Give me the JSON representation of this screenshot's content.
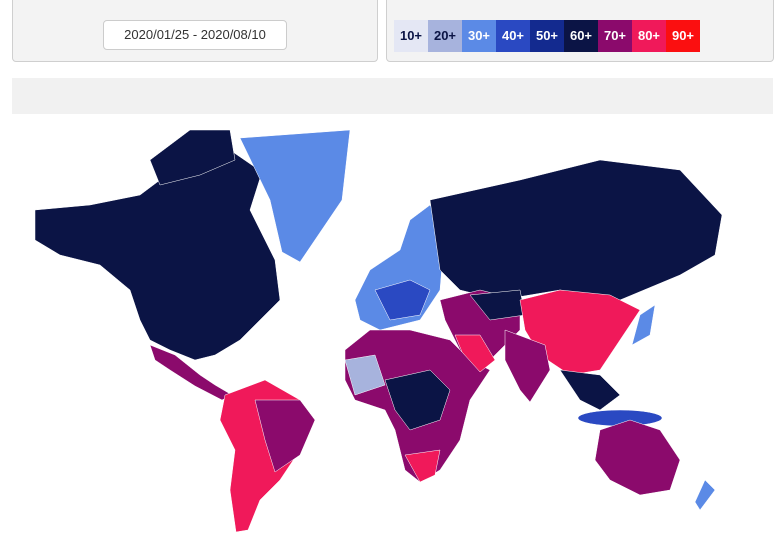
{
  "date_range": "2020/01/25 - 2020/08/10",
  "legend": [
    {
      "label": "10+",
      "color": "#e4e7f4",
      "text_color": "#0b1445"
    },
    {
      "label": "20+",
      "color": "#a7b3dd",
      "text_color": "#0b1445"
    },
    {
      "label": "30+",
      "color": "#5b8ae6",
      "text_color": "#ffffff"
    },
    {
      "label": "40+",
      "color": "#2a49c2",
      "text_color": "#ffffff"
    },
    {
      "label": "50+",
      "color": "#132a8f",
      "text_color": "#ffffff"
    },
    {
      "label": "60+",
      "color": "#0b1445",
      "text_color": "#ffffff"
    },
    {
      "label": "70+",
      "color": "#8b0a6c",
      "text_color": "#ffffff"
    },
    {
      "label": "80+",
      "color": "#f0195a",
      "text_color": "#ffffff"
    },
    {
      "label": "90+",
      "color": "#fb0f10",
      "text_color": "#ffffff"
    }
  ]
}
